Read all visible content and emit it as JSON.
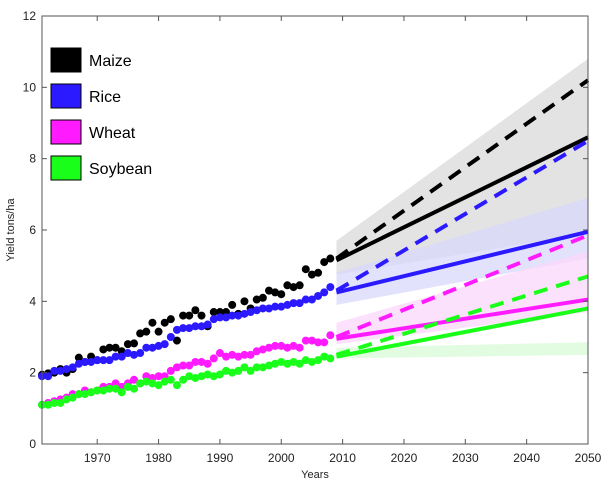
{
  "chart_data": {
    "type": "scatter",
    "title": "",
    "xlabel": "Years",
    "ylabel": "Yield tons/ha",
    "xlim": [
      1961,
      2050
    ],
    "ylim": [
      0,
      12
    ],
    "xticks": [
      1970,
      1980,
      1990,
      2000,
      2010,
      2020,
      2030,
      2040,
      2050
    ],
    "yticks": [
      0,
      2,
      4,
      6,
      8,
      10,
      12
    ],
    "grid": false,
    "legend_position": "top-left",
    "series": [
      {
        "name": "Maize",
        "color": "#000000",
        "band_color": "#d9d9d9",
        "observed": {
          "x": [
            1961,
            1962,
            1963,
            1964,
            1965,
            1966,
            1967,
            1968,
            1969,
            1970,
            1971,
            1972,
            1973,
            1974,
            1975,
            1976,
            1977,
            1978,
            1979,
            1980,
            1981,
            1982,
            1983,
            1984,
            1985,
            1986,
            1987,
            1988,
            1989,
            1990,
            1991,
            1992,
            1993,
            1994,
            1995,
            1996,
            1997,
            1998,
            1999,
            2000,
            2001,
            2002,
            2003,
            2004,
            2005,
            2006,
            2007,
            2008
          ],
          "y": [
            1.94,
            1.98,
            2.0,
            2.1,
            2.0,
            2.1,
            2.42,
            2.3,
            2.45,
            2.35,
            2.65,
            2.7,
            2.7,
            2.6,
            2.8,
            2.82,
            3.1,
            3.15,
            3.4,
            3.15,
            3.4,
            3.5,
            2.9,
            3.6,
            3.6,
            3.75,
            3.6,
            3.3,
            3.7,
            3.7,
            3.7,
            3.9,
            3.65,
            4.0,
            3.8,
            4.05,
            4.1,
            4.3,
            4.25,
            4.2,
            4.45,
            4.4,
            4.45,
            4.9,
            4.75,
            4.8,
            5.1,
            5.2
          ]
        },
        "projection_solid": {
          "x": [
            2009,
            2050
          ],
          "y": [
            5.15,
            8.6
          ]
        },
        "projection_dashed": {
          "x": [
            2009,
            2050
          ],
          "y": [
            5.2,
            10.2
          ]
        },
        "band": {
          "x": [
            2009,
            2050
          ],
          "lower": [
            4.75,
            5.9
          ],
          "upper": [
            5.7,
            10.8
          ]
        }
      },
      {
        "name": "Rice",
        "color": "#2b1aff",
        "band_color": "#d8d8fb",
        "observed": {
          "x": [
            1961,
            1962,
            1963,
            1964,
            1965,
            1966,
            1967,
            1968,
            1969,
            1970,
            1971,
            1972,
            1973,
            1974,
            1975,
            1976,
            1977,
            1978,
            1979,
            1980,
            1981,
            1982,
            1983,
            1984,
            1985,
            1986,
            1987,
            1988,
            1989,
            1990,
            1991,
            1992,
            1993,
            1994,
            1995,
            1996,
            1997,
            1998,
            1999,
            2000,
            2001,
            2002,
            2003,
            2004,
            2005,
            2006,
            2007,
            2008
          ],
          "y": [
            1.9,
            1.9,
            2.05,
            2.05,
            2.1,
            2.15,
            2.25,
            2.3,
            2.3,
            2.35,
            2.35,
            2.35,
            2.45,
            2.45,
            2.55,
            2.5,
            2.55,
            2.7,
            2.7,
            2.75,
            2.8,
            3.0,
            3.2,
            3.25,
            3.25,
            3.3,
            3.3,
            3.35,
            3.5,
            3.55,
            3.55,
            3.6,
            3.6,
            3.65,
            3.7,
            3.75,
            3.8,
            3.8,
            3.85,
            3.85,
            3.9,
            3.95,
            3.95,
            4.05,
            4.05,
            4.15,
            4.25,
            4.4
          ]
        },
        "projection_solid": {
          "x": [
            2009,
            2050
          ],
          "y": [
            4.25,
            5.95
          ]
        },
        "projection_dashed": {
          "x": [
            2009,
            2050
          ],
          "y": [
            4.3,
            8.5
          ]
        },
        "band": {
          "x": [
            2009,
            2050
          ],
          "lower": [
            3.9,
            5.2
          ],
          "upper": [
            4.8,
            6.9
          ]
        }
      },
      {
        "name": "Wheat",
        "color": "#ff1aff",
        "band_color": "#fbd7fb",
        "observed": {
          "x": [
            1961,
            1962,
            1963,
            1964,
            1965,
            1966,
            1967,
            1968,
            1969,
            1970,
            1971,
            1972,
            1973,
            1974,
            1975,
            1976,
            1977,
            1978,
            1979,
            1980,
            1981,
            1982,
            1983,
            1984,
            1985,
            1986,
            1987,
            1988,
            1989,
            1990,
            1991,
            1992,
            1993,
            1994,
            1995,
            1996,
            1997,
            1998,
            1999,
            2000,
            2001,
            2002,
            2003,
            2004,
            2005,
            2006,
            2007,
            2008
          ],
          "y": [
            1.1,
            1.15,
            1.2,
            1.25,
            1.3,
            1.4,
            1.4,
            1.5,
            1.45,
            1.5,
            1.6,
            1.6,
            1.7,
            1.6,
            1.7,
            1.8,
            1.7,
            1.9,
            1.85,
            1.9,
            1.9,
            2.05,
            2.15,
            2.2,
            2.2,
            2.3,
            2.3,
            2.25,
            2.4,
            2.55,
            2.45,
            2.5,
            2.45,
            2.5,
            2.5,
            2.6,
            2.65,
            2.7,
            2.75,
            2.75,
            2.7,
            2.75,
            2.7,
            2.9,
            2.9,
            2.85,
            2.85,
            3.05
          ]
        },
        "projection_solid": {
          "x": [
            2009,
            2050
          ],
          "y": [
            2.95,
            4.05
          ]
        },
        "projection_dashed": {
          "x": [
            2009,
            2050
          ],
          "y": [
            3.0,
            5.85
          ]
        },
        "band": {
          "x": [
            2009,
            2050
          ],
          "lower": [
            2.8,
            3.7
          ],
          "upper": [
            3.4,
            5.4
          ]
        }
      },
      {
        "name": "Soybean",
        "color": "#1aff1a",
        "band_color": "#d7fbd7",
        "observed": {
          "x": [
            1961,
            1962,
            1963,
            1964,
            1965,
            1966,
            1967,
            1968,
            1969,
            1970,
            1971,
            1972,
            1973,
            1974,
            1975,
            1976,
            1977,
            1978,
            1979,
            1980,
            1981,
            1982,
            1983,
            1984,
            1985,
            1986,
            1987,
            1988,
            1989,
            1990,
            1991,
            1992,
            1993,
            1994,
            1995,
            1996,
            1997,
            1998,
            1999,
            2000,
            2001,
            2002,
            2003,
            2004,
            2005,
            2006,
            2007,
            2008
          ],
          "y": [
            1.1,
            1.1,
            1.15,
            1.15,
            1.25,
            1.3,
            1.4,
            1.4,
            1.45,
            1.5,
            1.5,
            1.55,
            1.55,
            1.45,
            1.6,
            1.55,
            1.7,
            1.75,
            1.7,
            1.65,
            1.75,
            1.8,
            1.65,
            1.8,
            1.9,
            1.85,
            1.9,
            1.95,
            1.9,
            1.95,
            2.05,
            2.0,
            2.05,
            2.15,
            2.05,
            2.15,
            2.15,
            2.2,
            2.25,
            2.3,
            2.25,
            2.3,
            2.25,
            2.35,
            2.3,
            2.35,
            2.45,
            2.4
          ]
        },
        "projection_solid": {
          "x": [
            2009,
            2050
          ],
          "y": [
            2.45,
            3.8
          ]
        },
        "projection_dashed": {
          "x": [
            2009,
            2050
          ],
          "y": [
            2.5,
            4.7
          ]
        },
        "band": {
          "x": [
            2009,
            2050
          ],
          "lower": [
            2.4,
            2.5
          ],
          "upper": [
            2.7,
            2.85
          ]
        }
      }
    ]
  }
}
